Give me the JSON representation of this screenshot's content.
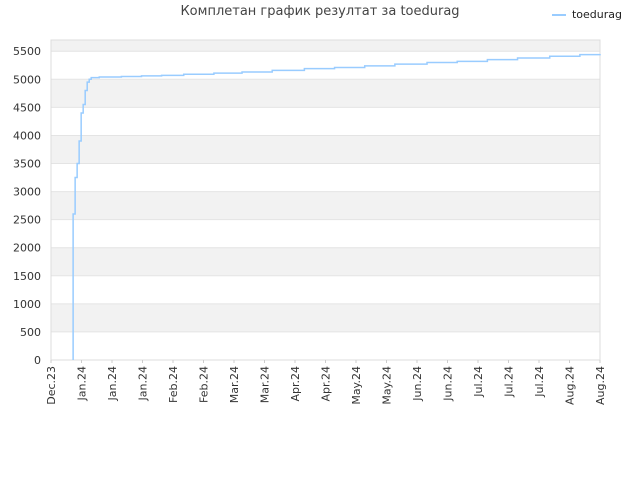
{
  "chart_data": {
    "type": "line",
    "title": "Комплетан график резултат за toedurag",
    "legend": {
      "position": "top-right",
      "entries": [
        "toedurag"
      ]
    },
    "series": [
      {
        "name": "toedurag",
        "color": "#99ccff",
        "points": [
          [
            "2023-12-12",
            0
          ],
          [
            "2023-12-12",
            2600
          ],
          [
            "2023-12-13",
            2850
          ],
          [
            "2023-12-13",
            3250
          ],
          [
            "2023-12-14",
            3500
          ],
          [
            "2023-12-15",
            3700
          ],
          [
            "2023-12-15",
            3900
          ],
          [
            "2023-12-16",
            4400
          ],
          [
            "2023-12-17",
            4550
          ],
          [
            "2023-12-18",
            4800
          ],
          [
            "2023-12-19",
            4950
          ],
          [
            "2023-12-20",
            5000
          ],
          [
            "2023-12-21",
            5030
          ],
          [
            "2023-12-25",
            5040
          ],
          [
            "2024-01-05",
            5050
          ],
          [
            "2024-01-15",
            5060
          ],
          [
            "2024-01-25",
            5070
          ],
          [
            "2024-02-05",
            5090
          ],
          [
            "2024-02-20",
            5110
          ],
          [
            "2024-03-05",
            5130
          ],
          [
            "2024-03-20",
            5160
          ],
          [
            "2024-04-05",
            5190
          ],
          [
            "2024-04-20",
            5210
          ],
          [
            "2024-05-05",
            5240
          ],
          [
            "2024-05-20",
            5270
          ],
          [
            "2024-06-05",
            5300
          ],
          [
            "2024-06-20",
            5320
          ],
          [
            "2024-07-05",
            5350
          ],
          [
            "2024-07-20",
            5380
          ],
          [
            "2024-08-05",
            5410
          ],
          [
            "2024-08-20",
            5440
          ],
          [
            "2024-08-30",
            5450
          ]
        ]
      }
    ],
    "x_tick_labels": [
      "Dec.23",
      "Jan.24",
      "Jan.24",
      "Jan.24",
      "Feb.24",
      "Feb.24",
      "Mar.24",
      "Mar.24",
      "Apr.24",
      "Apr.24",
      "May.24",
      "May.24",
      "Jun.24",
      "Jun.24",
      "Jul.24",
      "Jul.24",
      "Jul.24",
      "Aug.24",
      "Aug.24"
    ],
    "x_range": [
      "2023-12-01",
      "2024-08-30"
    ],
    "y_ticks": [
      0,
      500,
      1000,
      1500,
      2000,
      2500,
      3000,
      3500,
      4000,
      4500,
      5000,
      5500
    ],
    "ylim": [
      0,
      5700
    ],
    "grid": true,
    "band_colors": [
      "#f2f2f2",
      "#ffffff"
    ]
  }
}
